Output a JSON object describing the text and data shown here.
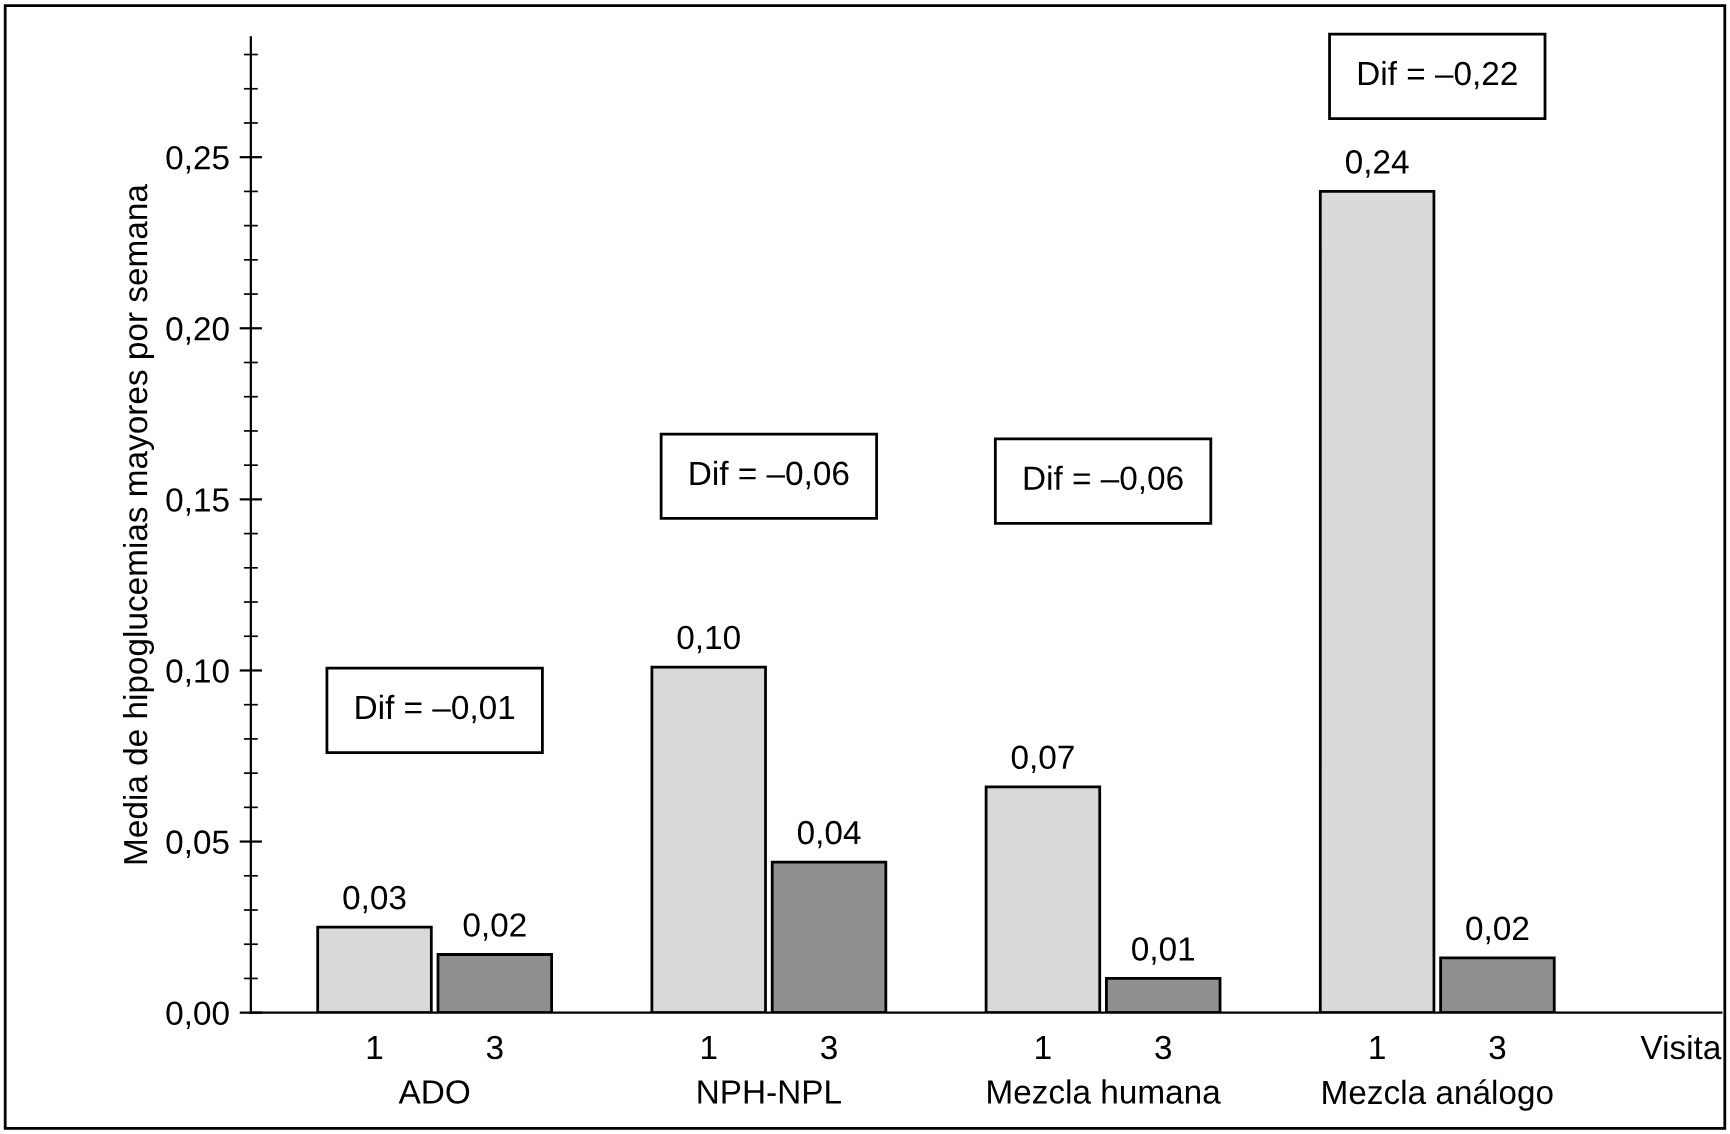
{
  "chart_data": {
    "type": "bar",
    "categories": [
      "ADO",
      "NPH-NPL",
      "Mezcla humana",
      "Mezcla análogo"
    ],
    "series": [
      {
        "name": "1",
        "color": "#d9d9d9",
        "values": [
          0.025,
          0.101,
          0.066,
          0.24
        ],
        "value_labels": [
          "0,03",
          "0,10",
          "0,07",
          "0,24"
        ]
      },
      {
        "name": "3",
        "color": "#8f8f8f",
        "values": [
          0.017,
          0.044,
          0.01,
          0.016
        ],
        "value_labels": [
          "0,02",
          "0,04",
          "0,01",
          "0,02"
        ]
      }
    ],
    "xlabel": "Visita",
    "ylabel": "Media de hipoglucemias mayores por semana",
    "ylim": [
      0,
      0.285
    ],
    "yticks": [
      {
        "value": 0,
        "label": "0,00"
      },
      {
        "value": 0.05,
        "label": "0,05"
      },
      {
        "value": 0.1,
        "label": "0,10"
      },
      {
        "value": 0.15,
        "label": "0,15"
      },
      {
        "value": 0.2,
        "label": "0,20"
      },
      {
        "value": 0.25,
        "label": "0,25"
      }
    ],
    "annotations": [
      "Dif = –0,01",
      "Dif = –0,06",
      "Dif = –0,06",
      "Dif = –0,22"
    ],
    "grid": false,
    "legend": false
  }
}
